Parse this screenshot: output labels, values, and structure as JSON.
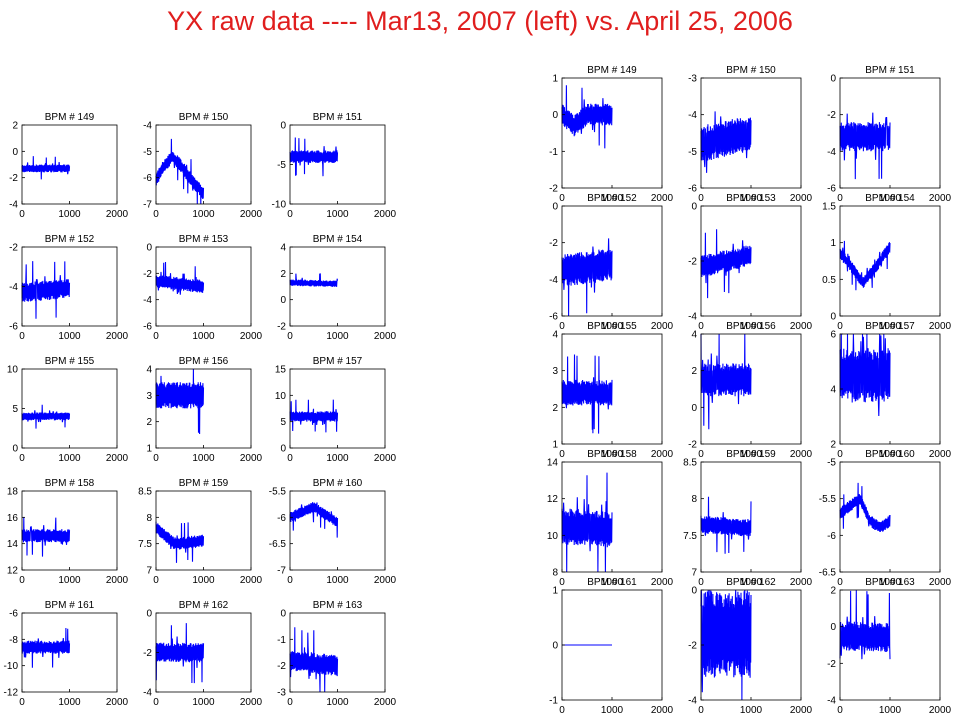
{
  "title": "YX raw data ---- Mar13, 2007 (left) vs. April 25, 2006",
  "trace_color": "#0000ff",
  "chart_data": [
    {
      "panel": "left",
      "type": "line",
      "title": "BPM # 149",
      "xlim": [
        0,
        2000
      ],
      "ylim": [
        -4,
        2
      ],
      "yticks": [
        -4,
        -2,
        0,
        2
      ],
      "xticks": [
        0,
        1000,
        2000
      ],
      "x_range": [
        0,
        1000
      ],
      "baseline": [
        [
          0,
          -1.3
        ],
        [
          1000,
          -1.3
        ]
      ],
      "amplitude": 0.3
    },
    {
      "panel": "left",
      "type": "line",
      "title": "BPM # 150",
      "xlim": [
        0,
        2000
      ],
      "ylim": [
        -7,
        -4
      ],
      "yticks": [
        -7,
        -6,
        -5,
        -4
      ],
      "xticks": [
        0,
        1000,
        2000
      ],
      "x_range": [
        0,
        1000
      ],
      "baseline": [
        [
          0,
          -6.1
        ],
        [
          150,
          -5.6
        ],
        [
          350,
          -5.2
        ],
        [
          550,
          -5.6
        ],
        [
          750,
          -6.1
        ],
        [
          1000,
          -6.6
        ]
      ],
      "amplitude": 0.25
    },
    {
      "panel": "left",
      "type": "line",
      "title": "BPM # 151",
      "xlim": [
        0,
        2000
      ],
      "ylim": [
        -10,
        0
      ],
      "yticks": [
        -10,
        -5,
        0
      ],
      "xticks": [
        0,
        1000,
        2000
      ],
      "x_range": [
        0,
        1000
      ],
      "baseline": [
        [
          0,
          -4.0
        ],
        [
          1000,
          -4.0
        ]
      ],
      "amplitude": 0.8
    },
    {
      "panel": "left",
      "type": "line",
      "title": "BPM # 152",
      "xlim": [
        0,
        2000
      ],
      "ylim": [
        -6,
        -2
      ],
      "yticks": [
        -6,
        -4,
        -2
      ],
      "xticks": [
        0,
        1000,
        2000
      ],
      "x_range": [
        0,
        1000
      ],
      "baseline": [
        [
          0,
          -4.3
        ],
        [
          1000,
          -4.1
        ]
      ],
      "amplitude": 0.5
    },
    {
      "panel": "left",
      "type": "line",
      "title": "BPM # 153",
      "xlim": [
        0,
        2000
      ],
      "ylim": [
        -6,
        0
      ],
      "yticks": [
        -6,
        -4,
        -2,
        0
      ],
      "xticks": [
        0,
        1000,
        2000
      ],
      "x_range": [
        0,
        1000
      ],
      "baseline": [
        [
          0,
          -2.6
        ],
        [
          1000,
          -3.0
        ]
      ],
      "amplitude": 0.5
    },
    {
      "panel": "left",
      "type": "line",
      "title": "BPM # 154",
      "xlim": [
        0,
        2000
      ],
      "ylim": [
        -2,
        4
      ],
      "yticks": [
        -2,
        0,
        2,
        4
      ],
      "xticks": [
        0,
        1000,
        2000
      ],
      "x_range": [
        0,
        1000
      ],
      "baseline": [
        [
          0,
          1.3
        ],
        [
          1000,
          1.2
        ]
      ],
      "amplitude": 0.25
    },
    {
      "panel": "left",
      "type": "line",
      "title": "BPM # 155",
      "xlim": [
        0,
        2000
      ],
      "ylim": [
        0,
        10
      ],
      "yticks": [
        0,
        5,
        10
      ],
      "xticks": [
        0,
        1000,
        2000
      ],
      "x_range": [
        0,
        1000
      ],
      "baseline": [
        [
          0,
          4.0
        ],
        [
          1000,
          4.0
        ]
      ],
      "amplitude": 0.5
    },
    {
      "panel": "left",
      "type": "line",
      "title": "BPM # 156",
      "xlim": [
        0,
        2000
      ],
      "ylim": [
        1,
        4
      ],
      "yticks": [
        1,
        2,
        3,
        4
      ],
      "xticks": [
        0,
        1000,
        2000
      ],
      "x_range": [
        0,
        1000
      ],
      "baseline": [
        [
          0,
          3.0
        ],
        [
          1000,
          3.0
        ]
      ],
      "amplitude": 0.5
    },
    {
      "panel": "left",
      "type": "line",
      "title": "BPM # 157",
      "xlim": [
        0,
        2000
      ],
      "ylim": [
        0,
        15
      ],
      "yticks": [
        0,
        5,
        10,
        15
      ],
      "xticks": [
        0,
        1000,
        2000
      ],
      "x_range": [
        0,
        1000
      ],
      "baseline": [
        [
          0,
          6.0
        ],
        [
          1000,
          6.0
        ]
      ],
      "amplitude": 1.0
    },
    {
      "panel": "left",
      "type": "line",
      "title": "BPM # 158",
      "xlim": [
        0,
        2000
      ],
      "ylim": [
        12,
        18
      ],
      "yticks": [
        12,
        14,
        16,
        18
      ],
      "xticks": [
        0,
        1000,
        2000
      ],
      "x_range": [
        0,
        1000
      ],
      "baseline": [
        [
          0,
          14.6
        ],
        [
          1000,
          14.6
        ]
      ],
      "amplitude": 0.5
    },
    {
      "panel": "left",
      "type": "line",
      "title": "BPM # 159",
      "xlim": [
        0,
        2000
      ],
      "ylim": [
        7,
        8.5
      ],
      "yticks": [
        7,
        7.5,
        8,
        8.5
      ],
      "xticks": [
        0,
        1000,
        2000
      ],
      "x_range": [
        0,
        1000
      ],
      "baseline": [
        [
          0,
          7.8
        ],
        [
          400,
          7.5
        ],
        [
          1000,
          7.55
        ]
      ],
      "amplitude": 0.12
    },
    {
      "panel": "left",
      "type": "line",
      "title": "BPM # 160",
      "xlim": [
        0,
        2000
      ],
      "ylim": [
        -7,
        -5.5
      ],
      "yticks": [
        -7,
        -6.5,
        -6,
        -5.5
      ],
      "xticks": [
        0,
        1000,
        2000
      ],
      "x_range": [
        0,
        1000
      ],
      "baseline": [
        [
          0,
          -6.0
        ],
        [
          500,
          -5.8
        ],
        [
          1000,
          -6.1
        ]
      ],
      "amplitude": 0.1
    },
    {
      "panel": "left",
      "type": "line",
      "title": "BPM # 161",
      "xlim": [
        0,
        2000
      ],
      "ylim": [
        -12,
        -6
      ],
      "yticks": [
        -12,
        -10,
        -8,
        -6
      ],
      "xticks": [
        0,
        1000,
        2000
      ],
      "x_range": [
        0,
        1000
      ],
      "baseline": [
        [
          0,
          -8.6
        ],
        [
          1000,
          -8.6
        ]
      ],
      "amplitude": 0.5
    },
    {
      "panel": "left",
      "type": "line",
      "title": "BPM # 162",
      "xlim": [
        0,
        2000
      ],
      "ylim": [
        -4,
        0
      ],
      "yticks": [
        -4,
        -2,
        0
      ],
      "xticks": [
        0,
        1000,
        2000
      ],
      "x_range": [
        0,
        1000
      ],
      "baseline": [
        [
          0,
          -2.0
        ],
        [
          1000,
          -2.0
        ]
      ],
      "amplitude": 0.5
    },
    {
      "panel": "left",
      "type": "line",
      "title": "BPM # 163",
      "xlim": [
        0,
        2000
      ],
      "ylim": [
        -3,
        0
      ],
      "yticks": [
        -3,
        -2,
        -1,
        0
      ],
      "xticks": [
        0,
        1000,
        2000
      ],
      "x_range": [
        0,
        1000
      ],
      "baseline": [
        [
          0,
          -1.8
        ],
        [
          1000,
          -2.0
        ]
      ],
      "amplitude": 0.4
    },
    {
      "panel": "right",
      "type": "line",
      "title": "BPM # 149",
      "xlim": [
        0,
        2000
      ],
      "ylim": [
        -2,
        1
      ],
      "yticks": [
        -2,
        -1,
        0,
        1
      ],
      "xticks": [
        0,
        1000,
        2000
      ],
      "x_range": [
        0,
        1000
      ],
      "baseline": [
        [
          0,
          0.0
        ],
        [
          250,
          -0.3
        ],
        [
          500,
          0.0
        ],
        [
          1000,
          0.0
        ]
      ],
      "amplitude": 0.3
    },
    {
      "panel": "right",
      "type": "line",
      "title": "BPM # 150",
      "xlim": [
        0,
        2000
      ],
      "ylim": [
        -6,
        -3
      ],
      "yticks": [
        -6,
        -5,
        -4,
        -3
      ],
      "xticks": [
        0,
        1000,
        2000
      ],
      "x_range": [
        0,
        1000
      ],
      "baseline": [
        [
          0,
          -4.8
        ],
        [
          1000,
          -4.5
        ]
      ],
      "amplitude": 0.5
    },
    {
      "panel": "right",
      "type": "line",
      "title": "BPM # 151",
      "xlim": [
        0,
        2000
      ],
      "ylim": [
        -6,
        0
      ],
      "yticks": [
        -6,
        -4,
        -2,
        0
      ],
      "xticks": [
        0,
        1000,
        2000
      ],
      "x_range": [
        0,
        1000
      ],
      "baseline": [
        [
          0,
          -3.2
        ],
        [
          1000,
          -3.2
        ]
      ],
      "amplitude": 0.8
    },
    {
      "panel": "right",
      "type": "line",
      "title": "BPM # 152",
      "xlim": [
        0,
        2000
      ],
      "ylim": [
        -6,
        0
      ],
      "yticks": [
        -6,
        -4,
        -2,
        0
      ],
      "xticks": [
        0,
        1000,
        2000
      ],
      "x_range": [
        0,
        1000
      ],
      "baseline": [
        [
          0,
          -3.5
        ],
        [
          1000,
          -3.2
        ]
      ],
      "amplitude": 0.9
    },
    {
      "panel": "right",
      "type": "line",
      "title": "BPM # 153",
      "xlim": [
        0,
        2000
      ],
      "ylim": [
        -4,
        0
      ],
      "yticks": [
        -4,
        -2,
        0
      ],
      "xticks": [
        0,
        1000,
        2000
      ],
      "x_range": [
        0,
        1000
      ],
      "baseline": [
        [
          0,
          -2.2
        ],
        [
          1000,
          -1.8
        ]
      ],
      "amplitude": 0.4
    },
    {
      "panel": "right",
      "type": "line",
      "title": "BPM # 154",
      "xlim": [
        0,
        2000
      ],
      "ylim": [
        0,
        1.5
      ],
      "yticks": [
        0,
        0.5,
        1,
        1.5
      ],
      "xticks": [
        0,
        1000,
        2000
      ],
      "x_range": [
        0,
        1000
      ],
      "baseline": [
        [
          0,
          0.85
        ],
        [
          200,
          0.7
        ],
        [
          450,
          0.45
        ],
        [
          700,
          0.65
        ],
        [
          1000,
          0.95
        ]
      ],
      "amplitude": 0.08
    },
    {
      "panel": "right",
      "type": "line",
      "title": "BPM # 155",
      "xlim": [
        0,
        2000
      ],
      "ylim": [
        1,
        4
      ],
      "yticks": [
        1,
        2,
        3,
        4
      ],
      "xticks": [
        0,
        1000,
        2000
      ],
      "x_range": [
        0,
        1000
      ],
      "baseline": [
        [
          0,
          2.4
        ],
        [
          1000,
          2.4
        ]
      ],
      "amplitude": 0.35
    },
    {
      "panel": "right",
      "type": "line",
      "title": "BPM # 156",
      "xlim": [
        0,
        2000
      ],
      "ylim": [
        -2,
        4
      ],
      "yticks": [
        -2,
        0,
        2,
        4
      ],
      "xticks": [
        0,
        1000,
        2000
      ],
      "x_range": [
        0,
        1000
      ],
      "baseline": [
        [
          0,
          1.5
        ],
        [
          1000,
          1.5
        ]
      ],
      "amplitude": 0.9
    },
    {
      "panel": "right",
      "type": "line",
      "title": "BPM # 157",
      "xlim": [
        0,
        2000
      ],
      "ylim": [
        2,
        6
      ],
      "yticks": [
        2,
        4,
        6
      ],
      "xticks": [
        0,
        1000,
        2000
      ],
      "x_range": [
        0,
        1000
      ],
      "baseline": [
        [
          0,
          4.5
        ],
        [
          1000,
          4.5
        ]
      ],
      "amplitude": 1.0
    },
    {
      "panel": "right",
      "type": "line",
      "title": "BPM # 158",
      "xlim": [
        0,
        2000
      ],
      "ylim": [
        8,
        14
      ],
      "yticks": [
        8,
        10,
        12,
        14
      ],
      "xticks": [
        0,
        1000,
        2000
      ],
      "x_range": [
        0,
        1000
      ],
      "baseline": [
        [
          0,
          10.5
        ],
        [
          1000,
          10.3
        ]
      ],
      "amplitude": 1.0
    },
    {
      "panel": "right",
      "type": "line",
      "title": "BPM # 159",
      "xlim": [
        0,
        2000
      ],
      "ylim": [
        7,
        8.5
      ],
      "yticks": [
        7,
        7.5,
        8,
        8.5
      ],
      "xticks": [
        0,
        1000,
        2000
      ],
      "x_range": [
        0,
        1000
      ],
      "baseline": [
        [
          0,
          7.65
        ],
        [
          1000,
          7.6
        ]
      ],
      "amplitude": 0.12
    },
    {
      "panel": "right",
      "type": "line",
      "title": "BPM # 160",
      "xlim": [
        0,
        2000
      ],
      "ylim": [
        -6.5,
        -5
      ],
      "yticks": [
        -6.5,
        -6,
        -5.5,
        -5
      ],
      "xticks": [
        0,
        1000,
        2000
      ],
      "x_range": [
        0,
        1000
      ],
      "baseline": [
        [
          0,
          -5.7
        ],
        [
          200,
          -5.6
        ],
        [
          400,
          -5.5
        ],
        [
          600,
          -5.8
        ],
        [
          800,
          -5.9
        ],
        [
          1000,
          -5.8
        ]
      ],
      "amplitude": 0.08
    },
    {
      "panel": "right",
      "type": "line",
      "title": "BPM # 161",
      "xlim": [
        0,
        2000
      ],
      "ylim": [
        -1,
        1
      ],
      "yticks": [
        -1,
        0,
        1
      ],
      "xticks": [
        0,
        1000,
        2000
      ],
      "x_range": [
        0,
        1000
      ],
      "baseline": [
        [
          0,
          0
        ],
        [
          1000,
          0
        ]
      ],
      "amplitude": 0
    },
    {
      "panel": "right",
      "type": "line",
      "title": "BPM # 162",
      "xlim": [
        0,
        2000
      ],
      "ylim": [
        -4,
        0
      ],
      "yticks": [
        -4,
        -2,
        0
      ],
      "xticks": [
        0,
        1000,
        2000
      ],
      "x_range": [
        0,
        1000
      ],
      "baseline": [
        [
          0,
          -1.6
        ],
        [
          1000,
          -1.6
        ]
      ],
      "amplitude": 1.6
    },
    {
      "panel": "right",
      "type": "line",
      "title": "BPM # 163",
      "xlim": [
        0,
        2000
      ],
      "ylim": [
        -4,
        2
      ],
      "yticks": [
        -4,
        -2,
        0,
        2
      ],
      "xticks": [
        0,
        1000,
        2000
      ],
      "x_range": [
        0,
        1000
      ],
      "baseline": [
        [
          0,
          -0.5
        ],
        [
          1000,
          -0.6
        ]
      ],
      "amplitude": 0.8
    }
  ]
}
